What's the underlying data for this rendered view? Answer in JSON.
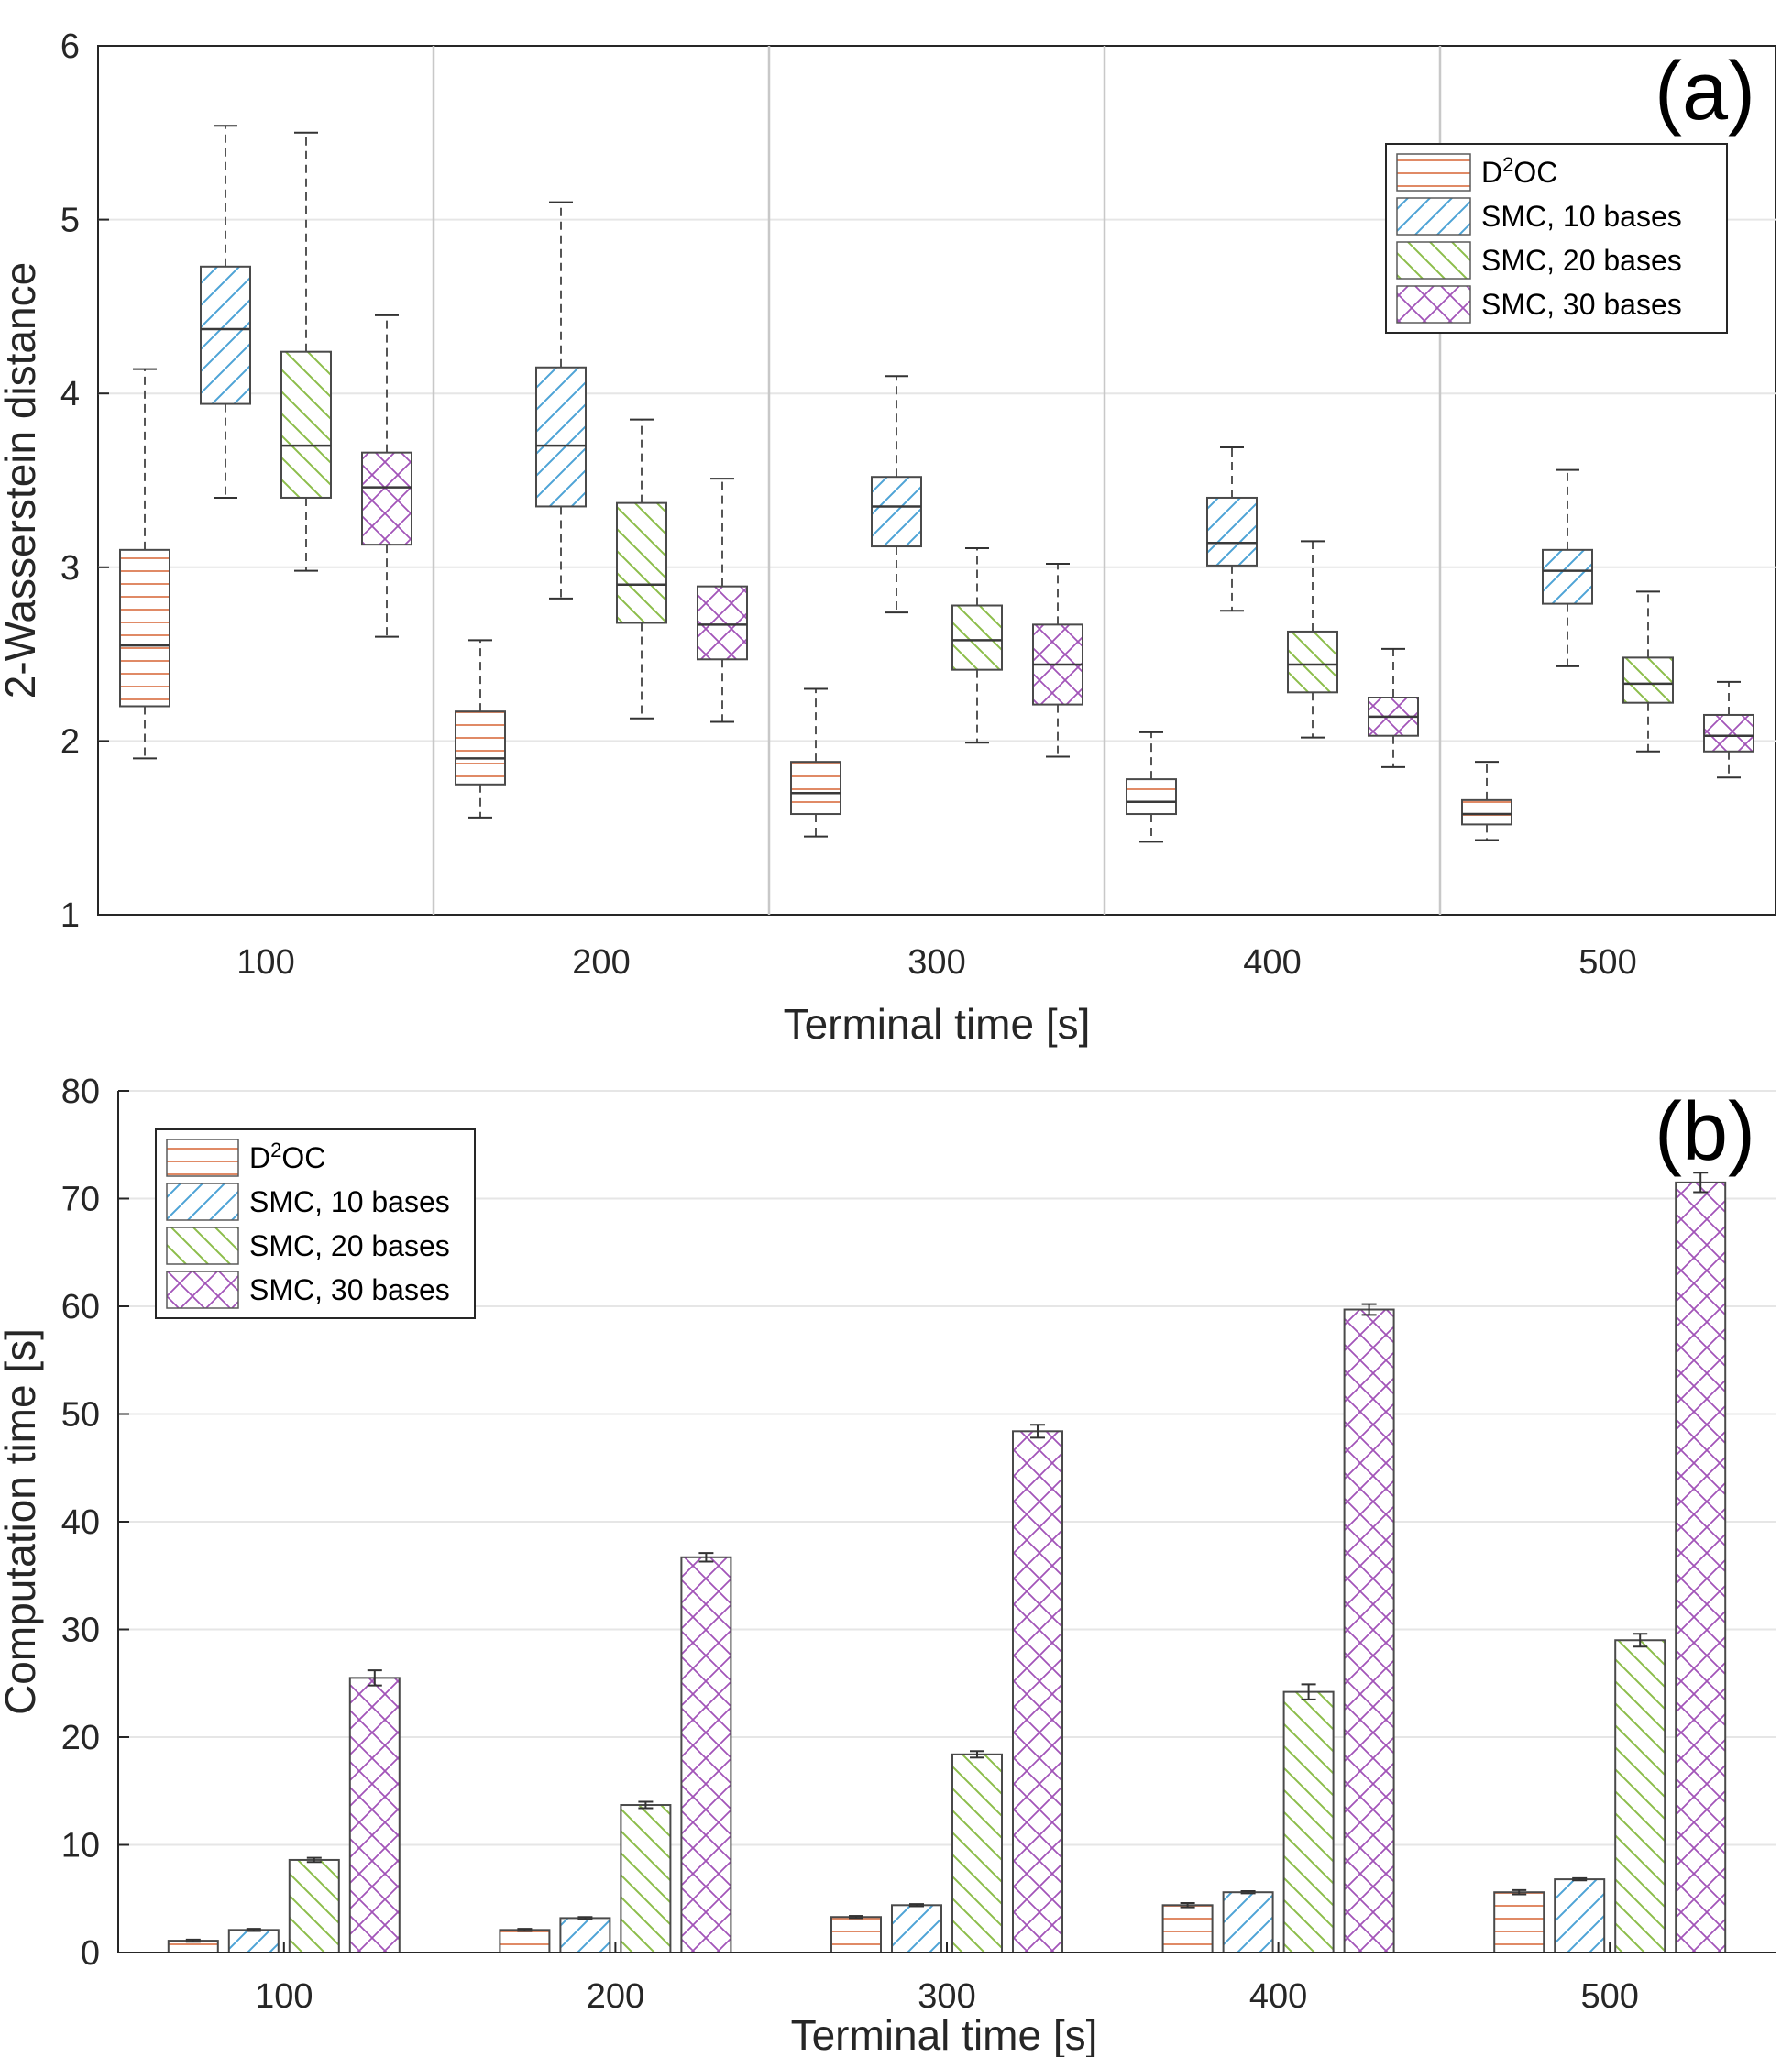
{
  "chart_data": [
    {
      "type": "box",
      "panel_label": "(a)",
      "ylabel": "2-Wasserstein distance",
      "xlabel": "Terminal time [s]",
      "ylim": [
        1,
        6
      ],
      "yticks": [
        "1",
        "2",
        "3",
        "4",
        "5",
        "6"
      ],
      "categories": [
        "100",
        "200",
        "300",
        "400",
        "500"
      ],
      "grid": true,
      "legend_position": "top-right",
      "series": [
        {
          "name": "D2OC",
          "color": "#e08a66",
          "pattern": "horizontal",
          "boxes": [
            {
              "min": 1.9,
              "q1": 2.2,
              "median": 2.55,
              "q3": 3.1,
              "max": 4.14
            },
            {
              "min": 1.56,
              "q1": 1.75,
              "median": 1.9,
              "q3": 2.17,
              "max": 2.58
            },
            {
              "min": 1.45,
              "q1": 1.58,
              "median": 1.7,
              "q3": 1.88,
              "max": 2.3
            },
            {
              "min": 1.42,
              "q1": 1.58,
              "median": 1.65,
              "q3": 1.78,
              "max": 2.05
            },
            {
              "min": 1.43,
              "q1": 1.52,
              "median": 1.58,
              "q3": 1.66,
              "max": 1.88
            }
          ]
        },
        {
          "name": "SMC, 10 bases",
          "color": "#4da3d6",
          "pattern": "diagonal-up",
          "boxes": [
            {
              "min": 3.4,
              "q1": 3.94,
              "median": 4.37,
              "q3": 4.73,
              "max": 5.54
            },
            {
              "min": 2.82,
              "q1": 3.35,
              "median": 3.7,
              "q3": 4.15,
              "max": 5.1
            },
            {
              "min": 2.74,
              "q1": 3.12,
              "median": 3.35,
              "q3": 3.52,
              "max": 4.1
            },
            {
              "min": 2.75,
              "q1": 3.01,
              "median": 3.14,
              "q3": 3.4,
              "max": 3.69
            },
            {
              "min": 2.43,
              "q1": 2.79,
              "median": 2.98,
              "q3": 3.1,
              "max": 3.56
            }
          ]
        },
        {
          "name": "SMC, 20 bases",
          "color": "#8cbd4a",
          "pattern": "diagonal-down",
          "boxes": [
            {
              "min": 2.98,
              "q1": 3.4,
              "median": 3.7,
              "q3": 4.24,
              "max": 5.5
            },
            {
              "min": 2.13,
              "q1": 2.68,
              "median": 2.9,
              "q3": 3.37,
              "max": 3.85
            },
            {
              "min": 1.99,
              "q1": 2.41,
              "median": 2.58,
              "q3": 2.78,
              "max": 3.11
            },
            {
              "min": 2.02,
              "q1": 2.28,
              "median": 2.44,
              "q3": 2.63,
              "max": 3.15
            },
            {
              "min": 1.94,
              "q1": 2.22,
              "median": 2.33,
              "q3": 2.48,
              "max": 2.86
            }
          ]
        },
        {
          "name": "SMC, 30 bases",
          "color": "#a254b8",
          "pattern": "crosshatch",
          "boxes": [
            {
              "min": 2.6,
              "q1": 3.13,
              "median": 3.46,
              "q3": 3.66,
              "max": 4.45
            },
            {
              "min": 2.11,
              "q1": 2.47,
              "median": 2.67,
              "q3": 2.89,
              "max": 3.51
            },
            {
              "min": 1.91,
              "q1": 2.21,
              "median": 2.44,
              "q3": 2.67,
              "max": 3.02
            },
            {
              "min": 1.85,
              "q1": 2.03,
              "median": 2.14,
              "q3": 2.25,
              "max": 2.53
            },
            {
              "min": 1.79,
              "q1": 1.94,
              "median": 2.03,
              "q3": 2.15,
              "max": 2.34
            }
          ]
        }
      ]
    },
    {
      "type": "bar",
      "panel_label": "(b)",
      "ylabel": "Computation time [s]",
      "xlabel": "Terminal time [s]",
      "ylim": [
        0,
        80
      ],
      "yticks": [
        "0",
        "10",
        "20",
        "30",
        "40",
        "50",
        "60",
        "70",
        "80"
      ],
      "categories": [
        "100",
        "200",
        "300",
        "400",
        "500"
      ],
      "grid": true,
      "legend_position": "top-left",
      "series": [
        {
          "name": "D2OC",
          "color": "#e08a66",
          "pattern": "horizontal",
          "values": [
            1.1,
            2.1,
            3.3,
            4.4,
            5.6
          ],
          "errors": [
            0.1,
            0.1,
            0.1,
            0.2,
            0.2
          ]
        },
        {
          "name": "SMC, 10 bases",
          "color": "#4da3d6",
          "pattern": "diagonal-up",
          "values": [
            2.1,
            3.2,
            4.4,
            5.6,
            6.8
          ],
          "errors": [
            0.1,
            0.1,
            0.1,
            0.1,
            0.1
          ]
        },
        {
          "name": "SMC, 20 bases",
          "color": "#8cbd4a",
          "pattern": "diagonal-down",
          "values": [
            8.6,
            13.7,
            18.4,
            24.2,
            29.0
          ],
          "errors": [
            0.2,
            0.3,
            0.3,
            0.7,
            0.6
          ]
        },
        {
          "name": "SMC, 30 bases",
          "color": "#a254b8",
          "pattern": "crosshatch",
          "values": [
            25.5,
            36.7,
            48.4,
            59.7,
            71.5
          ],
          "errors": [
            0.7,
            0.4,
            0.6,
            0.5,
            0.9
          ]
        }
      ]
    }
  ]
}
